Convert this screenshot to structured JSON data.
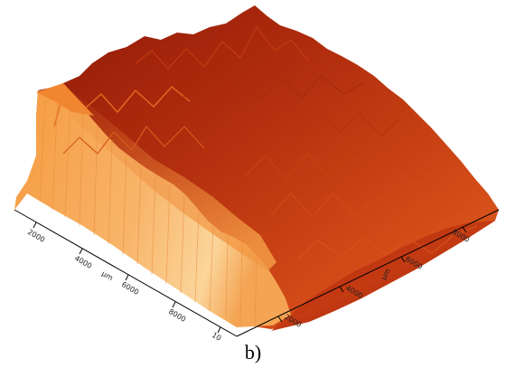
{
  "figure": {
    "caption": "b)",
    "surface_colors": {
      "peak": "#f7a24a",
      "mid": "#d8541a",
      "deep": "#9b1f0c",
      "shadow": "#7a1507",
      "highlight": "#fbd59a"
    },
    "x_axis": {
      "label": "μm",
      "ticks": [
        "2000",
        "4000",
        "6000",
        "8000",
        "10"
      ]
    },
    "y_axis": {
      "label": "μm",
      "ticks": [
        "2000",
        "4000",
        "6000",
        "8000"
      ]
    }
  }
}
